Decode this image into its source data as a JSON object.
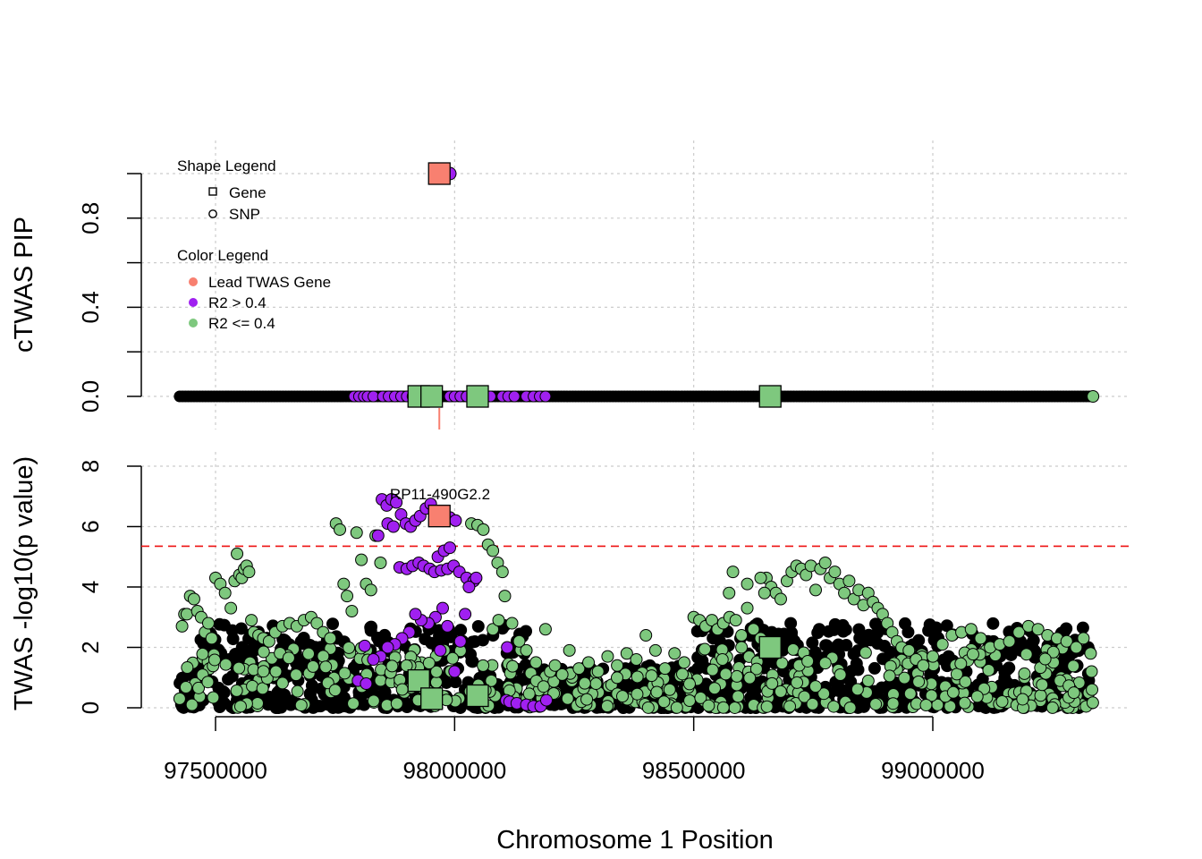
{
  "colors": {
    "lead": "#f88070",
    "high_ld": "#a020f0",
    "low_ld": "#7ec87e",
    "threshold": "#ee1111",
    "grid": "#cccccc",
    "stroke": "#000000"
  },
  "chart_data": [
    {
      "type": "scatter",
      "panel": "top",
      "ylabel": "cTWAS PIP",
      "ylim": [
        0,
        1
      ],
      "y_ticks": [
        "0.0",
        "0.4",
        "0.8"
      ],
      "x_range": [
        97420000,
        99340000
      ],
      "grid": true,
      "legend_placement": "top-left",
      "shape_legend": {
        "title": "Shape Legend",
        "items": [
          {
            "label": "Gene",
            "shape": "square"
          },
          {
            "label": "SNP",
            "shape": "circle"
          }
        ]
      },
      "color_legend": {
        "title": "Color Legend",
        "items": [
          {
            "label": "Lead TWAS Gene",
            "color": "#f88070"
          },
          {
            "label": "R2 > 0.4",
            "color": "#a020f0"
          },
          {
            "label": "R2 <= 0.4",
            "color": "#7ec87e"
          }
        ]
      },
      "genes": [
        {
          "x": 97968000,
          "y": 1.0,
          "group": "lead"
        },
        {
          "x": 97925000,
          "y": 0.0,
          "group": "low"
        },
        {
          "x": 97952000,
          "y": 0.0,
          "group": "low"
        },
        {
          "x": 98048000,
          "y": 0.0,
          "group": "low"
        },
        {
          "x": 98660000,
          "y": 0.0,
          "group": "low"
        }
      ],
      "snps_highlight": [
        {
          "x": 97990000,
          "y": 1.0,
          "group": "high"
        }
      ],
      "snp_baseline": {
        "x_start": 97425000,
        "x_end": 99335000,
        "y": 0.0
      },
      "purple_snp_positions": [
        97790000,
        97800000,
        97810000,
        97818000,
        97830000,
        97850000,
        97862000,
        97875000,
        97888000,
        97900000,
        97912000,
        97938000,
        97990000,
        98000000,
        98012000,
        98025000,
        98060000,
        98075000,
        98100000,
        98112000,
        98125000,
        98150000,
        98165000,
        98178000,
        98190000
      ],
      "lead_marker_x": 97968000
    },
    {
      "type": "scatter",
      "panel": "bottom",
      "ylabel": "TWAS -log10(p value)",
      "xlabel": "Chromosome 1 Position",
      "ylim": [
        0,
        8
      ],
      "y_ticks": [
        "0",
        "2",
        "4",
        "6",
        "8"
      ],
      "x_range": [
        97420000,
        99340000
      ],
      "x_ticks": [
        "97500000",
        "98000000",
        "98500000",
        "99000000"
      ],
      "threshold": 5.35,
      "grid": true,
      "annotation": {
        "label": "RP11-490G2.2",
        "x": 97970000,
        "y": 7.05
      },
      "genes": [
        {
          "x": 97968000,
          "y": 6.35,
          "group": "lead"
        },
        {
          "x": 97925000,
          "y": 0.9,
          "group": "low"
        },
        {
          "x": 97952000,
          "y": 0.3,
          "group": "low"
        },
        {
          "x": 98048000,
          "y": 0.4,
          "group": "low"
        },
        {
          "x": 98660000,
          "y": 2.0,
          "group": "low"
        }
      ],
      "purple_snps": [
        [
          97848000,
          6.9
        ],
        [
          97858000,
          6.7
        ],
        [
          97868000,
          6.9
        ],
        [
          97878000,
          6.8
        ],
        [
          97888000,
          6.4
        ],
        [
          97898000,
          6.1
        ],
        [
          97908000,
          6.0
        ],
        [
          97918000,
          6.2
        ],
        [
          97928000,
          6.35
        ],
        [
          97940000,
          6.6
        ],
        [
          97950000,
          6.75
        ],
        [
          97960000,
          6.5
        ],
        [
          97990000,
          6.3
        ],
        [
          98002000,
          6.2
        ],
        [
          97860000,
          6.1
        ],
        [
          97872000,
          6.0
        ],
        [
          97840000,
          5.7
        ],
        [
          97885000,
          4.65
        ],
        [
          97900000,
          4.6
        ],
        [
          97912000,
          4.7
        ],
        [
          97925000,
          4.8
        ],
        [
          97935000,
          4.7
        ],
        [
          97948000,
          4.6
        ],
        [
          97958000,
          4.5
        ],
        [
          97972000,
          4.55
        ],
        [
          97985000,
          4.6
        ],
        [
          97998000,
          4.7
        ],
        [
          98010000,
          4.5
        ],
        [
          98025000,
          4.3
        ],
        [
          98040000,
          4.2
        ],
        [
          97965000,
          5.0
        ],
        [
          97978000,
          5.2
        ],
        [
          97990000,
          5.3
        ],
        [
          97975000,
          3.3
        ],
        [
          97960000,
          3.0
        ],
        [
          97945000,
          2.8
        ],
        [
          97930000,
          2.9
        ],
        [
          97918000,
          3.1
        ],
        [
          97905000,
          2.5
        ],
        [
          97890000,
          2.3
        ],
        [
          97875000,
          2.1
        ],
        [
          97860000,
          2.0
        ],
        [
          97845000,
          1.7
        ],
        [
          97830000,
          1.6
        ],
        [
          97812000,
          2.05
        ],
        [
          97798000,
          0.9
        ],
        [
          97815000,
          0.8
        ],
        [
          97970000,
          1.9
        ],
        [
          97985000,
          2.7
        ],
        [
          98000000,
          1.2
        ],
        [
          98012000,
          2.2
        ],
        [
          98022000,
          3.1
        ],
        [
          98110000,
          2.0
        ],
        [
          98108000,
          0.25
        ],
        [
          98115000,
          0.2
        ],
        [
          98130000,
          0.15
        ],
        [
          98150000,
          0.1
        ],
        [
          98165000,
          0.05
        ],
        [
          98180000,
          0.05
        ],
        [
          98192000,
          0.25
        ],
        [
          98030000,
          4.0
        ],
        [
          98045000,
          4.3
        ]
      ],
      "green_snps": [
        [
          97425000,
          0.3
        ],
        [
          97430000,
          2.7
        ],
        [
          97435000,
          3.1
        ],
        [
          97440000,
          3.1
        ],
        [
          97447000,
          3.7
        ],
        [
          97455000,
          3.6
        ],
        [
          97462000,
          3.2
        ],
        [
          97470000,
          3.0
        ],
        [
          97478000,
          2.5
        ],
        [
          97485000,
          2.8
        ],
        [
          97492000,
          2.3
        ],
        [
          97500000,
          4.3
        ],
        [
          97510000,
          4.1
        ],
        [
          97520000,
          3.8
        ],
        [
          97532000,
          3.3
        ],
        [
          97540000,
          4.2
        ],
        [
          97545000,
          5.1
        ],
        [
          97550000,
          4.4
        ],
        [
          97555000,
          4.3
        ],
        [
          97560000,
          4.6
        ],
        [
          97565000,
          4.7
        ],
        [
          97570000,
          4.5
        ],
        [
          97575000,
          2.9
        ],
        [
          97580000,
          2.5
        ],
        [
          97590000,
          2.4
        ],
        [
          97600000,
          2.3
        ],
        [
          97612000,
          2.2
        ],
        [
          97625000,
          2.5
        ],
        [
          97640000,
          2.7
        ],
        [
          97655000,
          2.8
        ],
        [
          97670000,
          2.7
        ],
        [
          97685000,
          2.9
        ],
        [
          97700000,
          3.0
        ],
        [
          97712000,
          2.8
        ],
        [
          97725000,
          2.5
        ],
        [
          97740000,
          2.3
        ],
        [
          97752000,
          6.1
        ],
        [
          97760000,
          5.9
        ],
        [
          97768000,
          4.1
        ],
        [
          97775000,
          3.7
        ],
        [
          97785000,
          3.2
        ],
        [
          97795000,
          5.8
        ],
        [
          97805000,
          4.9
        ],
        [
          97815000,
          4.1
        ],
        [
          97825000,
          3.9
        ],
        [
          97835000,
          5.7
        ],
        [
          97845000,
          4.8
        ],
        [
          98035000,
          6.1
        ],
        [
          98048000,
          6.05
        ],
        [
          98060000,
          5.9
        ],
        [
          98070000,
          5.4
        ],
        [
          98080000,
          5.2
        ],
        [
          98090000,
          4.8
        ],
        [
          98100000,
          4.5
        ],
        [
          98105000,
          3.7
        ],
        [
          98080000,
          2.6
        ],
        [
          98092000,
          2.9
        ],
        [
          98120000,
          2.8
        ],
        [
          98135000,
          2.2
        ],
        [
          98150000,
          1.9
        ],
        [
          98170000,
          1.5
        ],
        [
          98190000,
          2.6
        ],
        [
          98200000,
          1.2
        ],
        [
          98210000,
          1.4
        ],
        [
          98225000,
          1.1
        ],
        [
          98240000,
          1.9
        ],
        [
          98260000,
          1.3
        ],
        [
          98280000,
          1.5
        ],
        [
          98300000,
          1.2
        ],
        [
          98320000,
          1.7
        ],
        [
          98340000,
          1.4
        ],
        [
          98360000,
          1.8
        ],
        [
          98380000,
          1.6
        ],
        [
          98400000,
          2.4
        ],
        [
          98420000,
          1.9
        ],
        [
          98440000,
          1.3
        ],
        [
          98460000,
          1.8
        ],
        [
          98480000,
          1.5
        ],
        [
          98500000,
          3.0
        ],
        [
          98512000,
          2.9
        ],
        [
          98525000,
          2.7
        ],
        [
          98538000,
          2.9
        ],
        [
          98550000,
          2.6
        ],
        [
          98562000,
          2.8
        ],
        [
          98575000,
          3.0
        ],
        [
          98588000,
          2.9
        ],
        [
          98600000,
          2.4
        ],
        [
          98612000,
          3.3
        ],
        [
          98625000,
          2.6
        ],
        [
          98640000,
          2.3
        ],
        [
          98652000,
          4.3
        ],
        [
          98662000,
          4.0
        ],
        [
          98672000,
          3.8
        ],
        [
          98682000,
          3.6
        ],
        [
          98695000,
          4.2
        ],
        [
          98705000,
          4.5
        ],
        [
          98715000,
          4.7
        ],
        [
          98725000,
          4.6
        ],
        [
          98735000,
          4.4
        ],
        [
          98745000,
          4.7
        ],
        [
          98755000,
          3.9
        ],
        [
          98765000,
          4.6
        ],
        [
          98775000,
          4.8
        ],
        [
          98785000,
          4.3
        ],
        [
          98795000,
          4.5
        ],
        [
          98805000,
          4.1
        ],
        [
          98815000,
          3.8
        ],
        [
          98825000,
          4.2
        ],
        [
          98835000,
          3.6
        ],
        [
          98845000,
          3.9
        ],
        [
          98855000,
          3.4
        ],
        [
          98865000,
          3.8
        ],
        [
          98875000,
          3.5
        ],
        [
          98885000,
          3.3
        ],
        [
          98895000,
          3.1
        ],
        [
          98905000,
          2.8
        ],
        [
          98915000,
          2.5
        ],
        [
          98925000,
          2.2
        ],
        [
          98935000,
          2.0
        ],
        [
          98950000,
          1.9
        ],
        [
          98965000,
          1.6
        ],
        [
          98980000,
          1.4
        ],
        [
          99000000,
          1.7
        ],
        [
          99020000,
          2.1
        ],
        [
          99040000,
          2.4
        ],
        [
          99060000,
          2.5
        ],
        [
          99080000,
          2.6
        ],
        [
          99100000,
          2.3
        ],
        [
          99120000,
          2.0
        ],
        [
          99140000,
          2.1
        ],
        [
          99160000,
          2.2
        ],
        [
          99180000,
          2.5
        ],
        [
          99200000,
          2.7
        ],
        [
          99220000,
          2.6
        ],
        [
          99240000,
          2.4
        ],
        [
          99260000,
          2.3
        ],
        [
          99280000,
          2.2
        ],
        [
          99300000,
          2.0
        ],
        [
          99315000,
          2.3
        ],
        [
          99330000,
          1.8
        ],
        [
          99332000,
          1.2
        ],
        [
          99333000,
          0.6
        ],
        [
          98574000,
          3.8
        ],
        [
          98582000,
          4.5
        ],
        [
          98612000,
          4.1
        ],
        [
          98640000,
          4.3
        ],
        [
          98648000,
          3.8
        ],
        [
          98600000,
          2.0
        ],
        [
          98560000,
          1.6
        ]
      ],
      "black_snp_band": {
        "x_start": 97425000,
        "x_end": 99335000,
        "y_max": 2.8
      }
    }
  ]
}
